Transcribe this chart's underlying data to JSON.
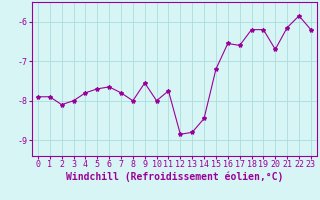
{
  "x": [
    0,
    1,
    2,
    3,
    4,
    5,
    6,
    7,
    8,
    9,
    10,
    11,
    12,
    13,
    14,
    15,
    16,
    17,
    18,
    19,
    20,
    21,
    22,
    23
  ],
  "y": [
    -7.9,
    -7.9,
    -8.1,
    -8.0,
    -7.8,
    -7.7,
    -7.65,
    -7.8,
    -8.0,
    -7.55,
    -8.0,
    -7.75,
    -8.85,
    -8.8,
    -8.45,
    -7.2,
    -6.55,
    -6.6,
    -6.2,
    -6.2,
    -6.7,
    -6.15,
    -5.85,
    -6.2
  ],
  "line_color": "#990099",
  "marker": "*",
  "marker_size": 3,
  "bg_color": "#d8f5f5",
  "grid_color": "#aadddd",
  "xlabel": "Windchill (Refroidissement éolien,°C)",
  "xlabel_fontsize": 7,
  "tick_fontsize": 6,
  "ylim": [
    -9.4,
    -5.5
  ],
  "yticks": [
    -9,
    -8,
    -7,
    -6
  ],
  "xlim": [
    -0.5,
    23.5
  ]
}
